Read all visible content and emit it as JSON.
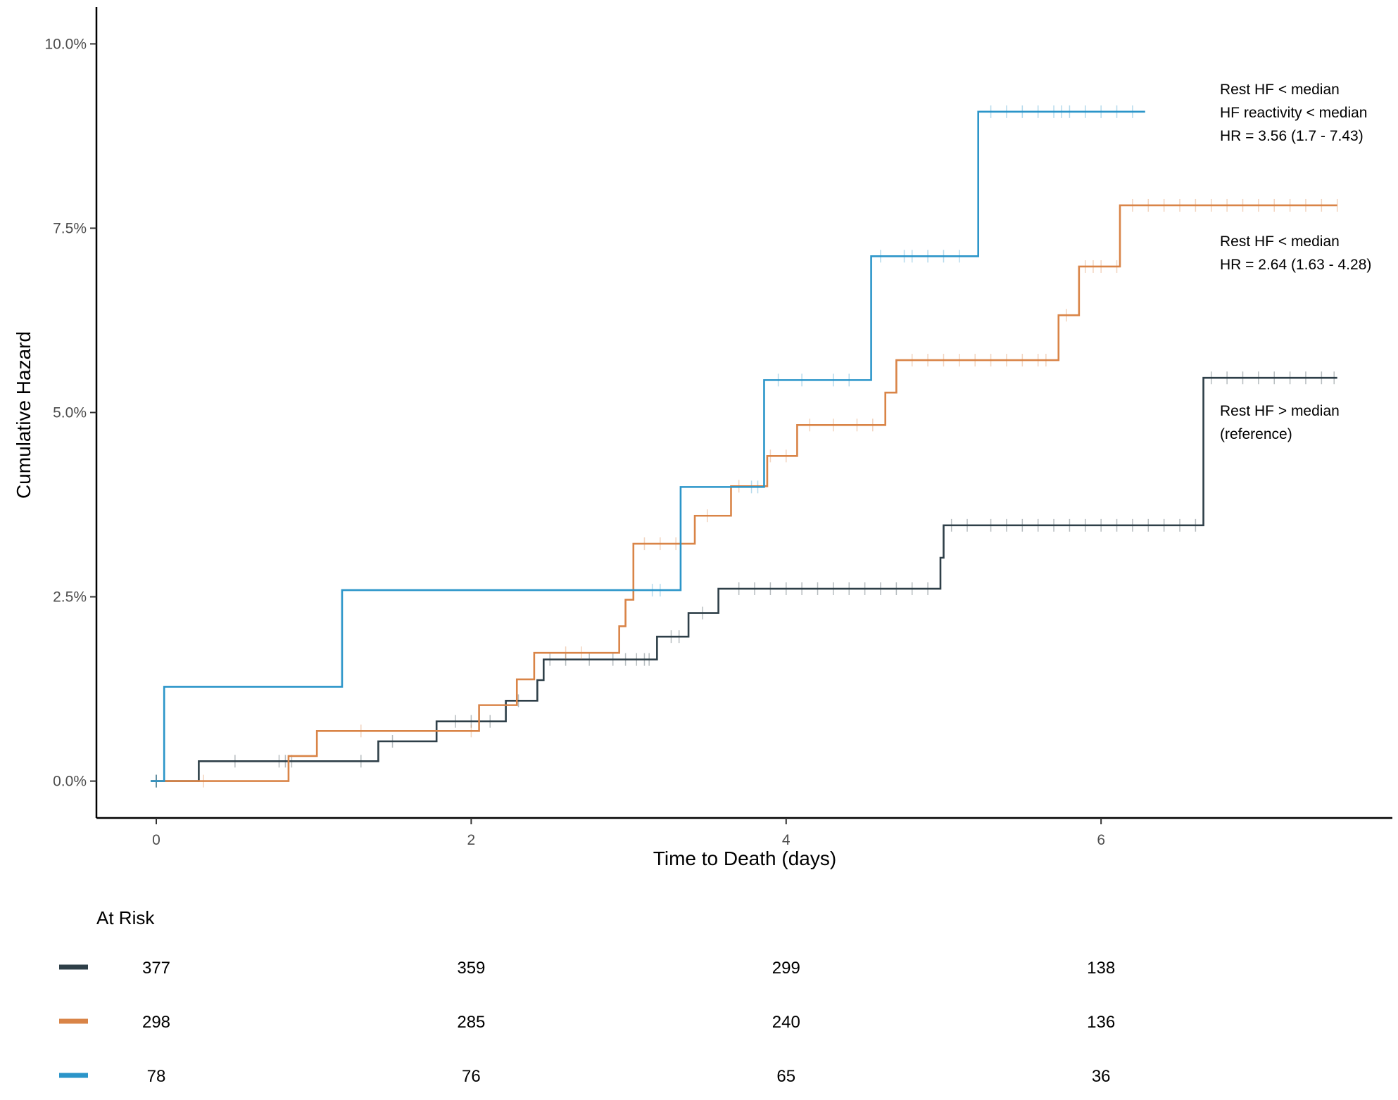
{
  "chart_data": {
    "type": "line",
    "title": "",
    "xlabel": "Time to Death (days)",
    "ylabel": "Cumulative Hazard",
    "xlim": [
      -0.38,
      7.85
    ],
    "ylim": [
      -0.5,
      10.5
    ],
    "x_ticks": [
      0,
      2,
      4,
      6
    ],
    "y_ticks": [
      0,
      2.5,
      5,
      7.5,
      10
    ],
    "y_tick_labels": [
      "0.0%",
      "2.5%",
      "5.0%",
      "7.5%",
      "10.0%"
    ],
    "grid": false,
    "step": true,
    "series": [
      {
        "color": "#2e3f48",
        "steps": [
          [
            0,
            0
          ],
          [
            0.27,
            0.27
          ],
          [
            1.41,
            0.54
          ],
          [
            1.78,
            0.81
          ],
          [
            2.22,
            1.09
          ],
          [
            2.42,
            1.37
          ],
          [
            2.46,
            1.65
          ],
          [
            3.18,
            1.96
          ],
          [
            3.38,
            2.28
          ],
          [
            3.57,
            2.61
          ],
          [
            4.98,
            3.03
          ],
          [
            5.0,
            3.47
          ],
          [
            6.65,
            5.47
          ],
          [
            7.5,
            5.47
          ]
        ],
        "censor_times": [
          0.5,
          0.78,
          0.82,
          0.86,
          1.3,
          1.5,
          1.9,
          2.0,
          2.05,
          2.12,
          2.3,
          2.5,
          2.6,
          2.75,
          2.9,
          2.98,
          3.05,
          3.1,
          3.13,
          3.27,
          3.32,
          3.47,
          3.7,
          3.8,
          3.9,
          4.0,
          4.1,
          4.2,
          4.3,
          4.4,
          4.5,
          4.6,
          4.7,
          4.8,
          4.9,
          5.05,
          5.15,
          5.3,
          5.4,
          5.5,
          5.6,
          5.7,
          5.8,
          5.9,
          6.0,
          6.1,
          6.2,
          6.3,
          6.4,
          6.5,
          6.6,
          6.7,
          6.8,
          6.9,
          7.0,
          7.1,
          7.2,
          7.3,
          7.4,
          7.48
        ]
      },
      {
        "color": "#d98447",
        "steps": [
          [
            0,
            0
          ],
          [
            0.84,
            0.34
          ],
          [
            1.02,
            0.68
          ],
          [
            2.05,
            1.03
          ],
          [
            2.29,
            1.38
          ],
          [
            2.4,
            1.74
          ],
          [
            2.94,
            2.1
          ],
          [
            2.98,
            2.46
          ],
          [
            3.03,
            3.22
          ],
          [
            3.42,
            3.6
          ],
          [
            3.65,
            4.0
          ],
          [
            3.88,
            4.41
          ],
          [
            4.07,
            4.83
          ],
          [
            4.63,
            5.27
          ],
          [
            4.7,
            5.71
          ],
          [
            5.73,
            6.32
          ],
          [
            5.86,
            6.98
          ],
          [
            6.12,
            7.81
          ],
          [
            7.5,
            7.81
          ]
        ],
        "censor_times": [
          0.3,
          1.3,
          2.0,
          2.6,
          2.7,
          3.1,
          3.2,
          3.3,
          3.5,
          3.7,
          3.9,
          4.0,
          4.15,
          4.3,
          4.45,
          4.55,
          4.8,
          4.9,
          5.0,
          5.1,
          5.2,
          5.3,
          5.4,
          5.5,
          5.6,
          5.65,
          5.78,
          5.9,
          5.95,
          6.0,
          6.1,
          6.2,
          6.3,
          6.4,
          6.5,
          6.6,
          6.7,
          6.8,
          6.9,
          7.0,
          7.1,
          7.2,
          7.3,
          7.4,
          7.5
        ]
      },
      {
        "color": "#2b95c9",
        "steps": [
          [
            0,
            0
          ],
          [
            0.05,
            1.28
          ],
          [
            1.18,
            2.59
          ],
          [
            3.33,
            3.99
          ],
          [
            3.86,
            5.44
          ],
          [
            4.54,
            7.12
          ],
          [
            5.22,
            9.08
          ],
          [
            6.28,
            9.08
          ]
        ],
        "censor_times": [
          3.15,
          3.2,
          3.78,
          3.82,
          3.95,
          4.1,
          4.3,
          4.4,
          4.6,
          4.75,
          4.8,
          4.9,
          5.0,
          5.1,
          5.3,
          5.4,
          5.5,
          5.6,
          5.7,
          5.75,
          5.8,
          5.9,
          6.0,
          6.1,
          6.2
        ]
      }
    ],
    "annotations": [
      {
        "lines": [
          "Rest HF < median",
          "HF reactivity < median",
          "HR = 3.56 (1.7 - 7.43)"
        ]
      },
      {
        "lines": [
          "Rest HF < median",
          "HR = 2.64 (1.63 - 4.28)"
        ]
      },
      {
        "lines": [
          "Rest HF > median",
          "(reference)"
        ]
      }
    ],
    "risk_table": {
      "title": "At Risk",
      "times": [
        0,
        2,
        4,
        6
      ],
      "rows": [
        {
          "color": "#2e3f48",
          "values": [
            "377",
            "359",
            "299",
            "138"
          ]
        },
        {
          "color": "#d98447",
          "values": [
            "298",
            "285",
            "240",
            "136"
          ]
        },
        {
          "color": "#2b95c9",
          "values": [
            "78",
            "76",
            "65",
            "36"
          ]
        }
      ]
    }
  }
}
